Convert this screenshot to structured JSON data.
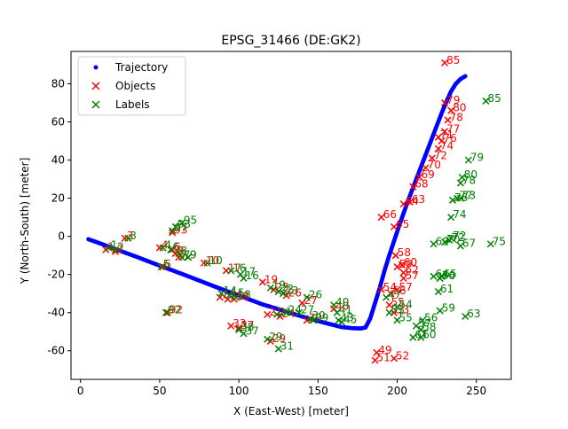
{
  "chart_data": {
    "type": "scatter",
    "title": "EPSG_31466 (DE:GK2)",
    "xlabel": "X (East-West) [meter]",
    "ylabel": "Y (North-South) [meter]",
    "xlim": [
      -6,
      272
    ],
    "ylim": [
      -75,
      97
    ],
    "xticks": [
      0,
      50,
      100,
      150,
      200,
      250
    ],
    "yticks": [
      -60,
      -40,
      -20,
      0,
      20,
      40,
      60,
      80
    ],
    "grid": false,
    "legend_position": "top-left",
    "series": [
      {
        "name": "Trajectory",
        "marker": "dot",
        "color": "#0000ff",
        "x": [
          5,
          15,
          25,
          35,
          45,
          55,
          65,
          75,
          85,
          95,
          105,
          115,
          125,
          135,
          145,
          155,
          165,
          172,
          177,
          180,
          183,
          186,
          189,
          192,
          195,
          198,
          201,
          204,
          207,
          210,
          213,
          216,
          219,
          222,
          225,
          228,
          231,
          234,
          237,
          240,
          243
        ],
        "y": [
          -1.5,
          -4.5,
          -7.6,
          -10.6,
          -13.8,
          -16.9,
          -20.0,
          -23.2,
          -26.4,
          -29.5,
          -32.6,
          -35.7,
          -38.2,
          -40.8,
          -43.3,
          -45.5,
          -47.6,
          -48.2,
          -48.3,
          -47.8,
          -43.0,
          -35.0,
          -27.0,
          -18.0,
          -10.0,
          -2.5,
          5.0,
          12.0,
          19.0,
          25.5,
          32.0,
          38.5,
          45.0,
          51.5,
          58.0,
          64.5,
          70.5,
          76.0,
          80.0,
          82.5,
          84.0
        ]
      },
      {
        "name": "Objects",
        "marker": "x",
        "color": "#ff0000",
        "label_color": "#ff0000",
        "points": [
          {
            "x": 16,
            "y": -7,
            "label": "1"
          },
          {
            "x": 22,
            "y": -8,
            "label": "2"
          },
          {
            "x": 28,
            "y": -1,
            "label": "3"
          },
          {
            "x": 50,
            "y": -6,
            "label": "4"
          },
          {
            "x": 52,
            "y": -16,
            "label": "5"
          },
          {
            "x": 58,
            "y": -7,
            "label": "6"
          },
          {
            "x": 62,
            "y": -11,
            "label": "7"
          },
          {
            "x": 60,
            "y": -9,
            "label": "8"
          },
          {
            "x": 68,
            "y": -11,
            "label": "9"
          },
          {
            "x": 78,
            "y": -14,
            "label": "10"
          },
          {
            "x": 88,
            "y": -32,
            "label": "14"
          },
          {
            "x": 92,
            "y": -18,
            "label": "17"
          },
          {
            "x": 93,
            "y": -33,
            "label": "15"
          },
          {
            "x": 95,
            "y": -47,
            "label": "33"
          },
          {
            "x": 97,
            "y": -33,
            "label": "18"
          },
          {
            "x": 100,
            "y": -48,
            "label": "37"
          },
          {
            "x": 115,
            "y": -24,
            "label": "19"
          },
          {
            "x": 118,
            "y": -41,
            "label": "21"
          },
          {
            "x": 120,
            "y": -55,
            "label": "29"
          },
          {
            "x": 122,
            "y": -28,
            "label": "23"
          },
          {
            "x": 126,
            "y": -42,
            "label": "24"
          },
          {
            "x": 130,
            "y": -31,
            "label": "26"
          },
          {
            "x": 140,
            "y": -35,
            "label": "27"
          },
          {
            "x": 143,
            "y": -44,
            "label": "29"
          },
          {
            "x": 160,
            "y": -38,
            "label": "40"
          },
          {
            "x": 55,
            "y": -40,
            "label": "92"
          },
          {
            "x": 58,
            "y": 2,
            "label": "93"
          },
          {
            "x": 186,
            "y": -65,
            "label": "51"
          },
          {
            "x": 187,
            "y": -61,
            "label": "49"
          },
          {
            "x": 190,
            "y": -28,
            "label": "54"
          },
          {
            "x": 195,
            "y": -36,
            "label": "55"
          },
          {
            "x": 196,
            "y": -30,
            "label": "56"
          },
          {
            "x": 198,
            "y": -40,
            "label": "53"
          },
          {
            "x": 198,
            "y": -64,
            "label": "52"
          },
          {
            "x": 200,
            "y": -28,
            "label": "57"
          },
          {
            "x": 190,
            "y": 10,
            "label": "66"
          },
          {
            "x": 198,
            "y": 5,
            "label": "65"
          },
          {
            "x": 199,
            "y": -10,
            "label": "58"
          },
          {
            "x": 200,
            "y": -16,
            "label": "59"
          },
          {
            "x": 203,
            "y": -15,
            "label": "60"
          },
          {
            "x": 204,
            "y": -19,
            "label": "62"
          },
          {
            "x": 204,
            "y": -22,
            "label": "57"
          },
          {
            "x": 204,
            "y": 17,
            "label": "64"
          },
          {
            "x": 208,
            "y": 18,
            "label": "63"
          },
          {
            "x": 210,
            "y": 26,
            "label": "68"
          },
          {
            "x": 214,
            "y": 31,
            "label": "69"
          },
          {
            "x": 218,
            "y": 36,
            "label": "70"
          },
          {
            "x": 222,
            "y": 41,
            "label": "72"
          },
          {
            "x": 226,
            "y": 46,
            "label": "74"
          },
          {
            "x": 226,
            "y": 52,
            "label": "71"
          },
          {
            "x": 228,
            "y": 50,
            "label": "76"
          },
          {
            "x": 230,
            "y": 55,
            "label": "77"
          },
          {
            "x": 232,
            "y": 61,
            "label": "78"
          },
          {
            "x": 234,
            "y": 66,
            "label": "80"
          },
          {
            "x": 230,
            "y": 70,
            "label": "79"
          },
          {
            "x": 230,
            "y": 91,
            "label": "85"
          }
        ]
      },
      {
        "name": "Labels",
        "marker": "x",
        "color": "#008000",
        "label_color": "#008000",
        "points": [
          {
            "x": 18,
            "y": -6,
            "label": "1"
          },
          {
            "x": 22,
            "y": -7,
            "label": "2"
          },
          {
            "x": 30,
            "y": -1,
            "label": "3"
          },
          {
            "x": 52,
            "y": -6,
            "label": "4"
          },
          {
            "x": 51,
            "y": -16,
            "label": "5"
          },
          {
            "x": 57,
            "y": -7,
            "label": "6"
          },
          {
            "x": 64,
            "y": -11,
            "label": "7"
          },
          {
            "x": 62,
            "y": -9,
            "label": "8"
          },
          {
            "x": 68,
            "y": -11,
            "label": "9"
          },
          {
            "x": 80,
            "y": -14,
            "label": "10"
          },
          {
            "x": 89,
            "y": -30,
            "label": "14"
          },
          {
            "x": 95,
            "y": -18,
            "label": "16"
          },
          {
            "x": 94,
            "y": -31,
            "label": "15"
          },
          {
            "x": 101,
            "y": -20,
            "label": "17"
          },
          {
            "x": 98,
            "y": -32,
            "label": "18"
          },
          {
            "x": 103,
            "y": -51,
            "label": "37"
          },
          {
            "x": 100,
            "y": -49,
            "label": "38"
          },
          {
            "x": 103,
            "y": -22,
            "label": "16"
          },
          {
            "x": 120,
            "y": -27,
            "label": "19"
          },
          {
            "x": 118,
            "y": -54,
            "label": "29"
          },
          {
            "x": 125,
            "y": -29,
            "label": "22"
          },
          {
            "x": 125,
            "y": -59,
            "label": "31"
          },
          {
            "x": 124,
            "y": -41,
            "label": "21"
          },
          {
            "x": 130,
            "y": -40,
            "label": "24"
          },
          {
            "x": 128,
            "y": -30,
            "label": "23"
          },
          {
            "x": 143,
            "y": -32,
            "label": "26"
          },
          {
            "x": 138,
            "y": -40,
            "label": "27"
          },
          {
            "x": 145,
            "y": -43,
            "label": "30"
          },
          {
            "x": 147,
            "y": -44,
            "label": "29"
          },
          {
            "x": 160,
            "y": -36,
            "label": "40"
          },
          {
            "x": 162,
            "y": -40,
            "label": "41"
          },
          {
            "x": 163,
            "y": -44,
            "label": "43"
          },
          {
            "x": 165,
            "y": -45,
            "label": "45"
          },
          {
            "x": 54,
            "y": -40,
            "label": "92"
          },
          {
            "x": 60,
            "y": 5,
            "label": "93"
          },
          {
            "x": 64,
            "y": 7,
            "label": "95"
          },
          {
            "x": 58,
            "y": 3,
            "label": "97"
          },
          {
            "x": 193,
            "y": -32,
            "label": "47"
          },
          {
            "x": 195,
            "y": -40,
            "label": "53"
          },
          {
            "x": 200,
            "y": -37,
            "label": "54"
          },
          {
            "x": 200,
            "y": -44,
            "label": "55"
          },
          {
            "x": 212,
            "y": -47,
            "label": "57"
          },
          {
            "x": 216,
            "y": -44,
            "label": "56"
          },
          {
            "x": 210,
            "y": -53,
            "label": "61"
          },
          {
            "x": 215,
            "y": -53,
            "label": "60"
          },
          {
            "x": 215,
            "y": -49,
            "label": "58"
          },
          {
            "x": 227,
            "y": -39,
            "label": "59"
          },
          {
            "x": 226,
            "y": -29,
            "label": "61"
          },
          {
            "x": 223,
            "y": -21,
            "label": "64"
          },
          {
            "x": 227,
            "y": -22,
            "label": "66"
          },
          {
            "x": 228,
            "y": -21,
            "label": "65"
          },
          {
            "x": 227,
            "y": -22,
            "label": "70"
          },
          {
            "x": 223,
            "y": -4,
            "label": "69"
          },
          {
            "x": 230,
            "y": -3,
            "label": "70"
          },
          {
            "x": 233,
            "y": -2,
            "label": "72"
          },
          {
            "x": 240,
            "y": -5,
            "label": "67"
          },
          {
            "x": 243,
            "y": -42,
            "label": "63"
          },
          {
            "x": 234,
            "y": -1,
            "label": "72"
          },
          {
            "x": 234,
            "y": 10,
            "label": "74"
          },
          {
            "x": 235,
            "y": 19,
            "label": "76"
          },
          {
            "x": 238,
            "y": 20,
            "label": "77"
          },
          {
            "x": 240,
            "y": 20,
            "label": "73"
          },
          {
            "x": 240,
            "y": 28,
            "label": "78"
          },
          {
            "x": 241,
            "y": 31,
            "label": "80"
          },
          {
            "x": 245,
            "y": 40,
            "label": "79"
          },
          {
            "x": 259,
            "y": -4,
            "label": "75"
          },
          {
            "x": 256,
            "y": 71,
            "label": "85"
          }
        ]
      }
    ]
  }
}
